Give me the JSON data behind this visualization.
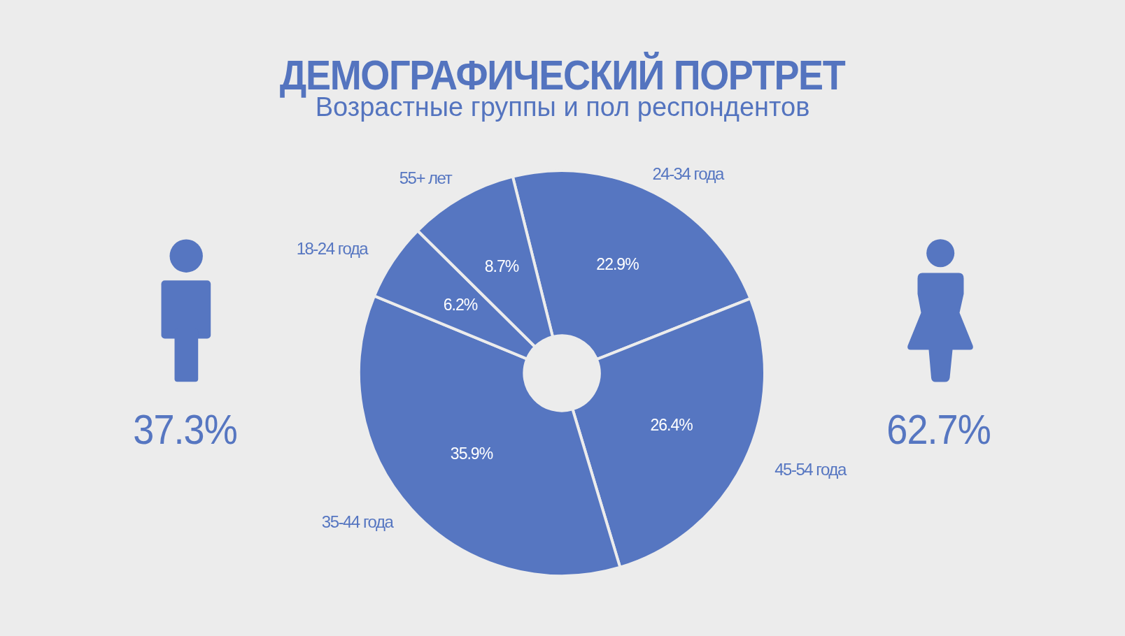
{
  "chart_data": [
    {
      "type": "donut",
      "title": "ДЕМОГРАФИЧЕСКИЙ ПОРТРЕТ",
      "subtitle": "Возрастные группы и пол респондентов",
      "categories": [
        "24-34 года",
        "45-54 года",
        "35-44 года",
        "18-24 года",
        "55+ лет"
      ],
      "values": [
        22.9,
        26.4,
        35.9,
        6.2,
        8.7
      ],
      "colors": [
        "#5676c1",
        "#5676c1",
        "#5676c1",
        "#5676c1",
        "#5676c1"
      ],
      "value_labels": [
        "22.9%",
        "26.4%",
        "35.9%",
        "6.2%",
        "8.7%"
      ]
    },
    {
      "type": "other",
      "values": [
        37.3,
        62.7
      ],
      "value_labels": [
        "37.3%",
        "62.7%"
      ],
      "color": "#5676c1"
    }
  ]
}
